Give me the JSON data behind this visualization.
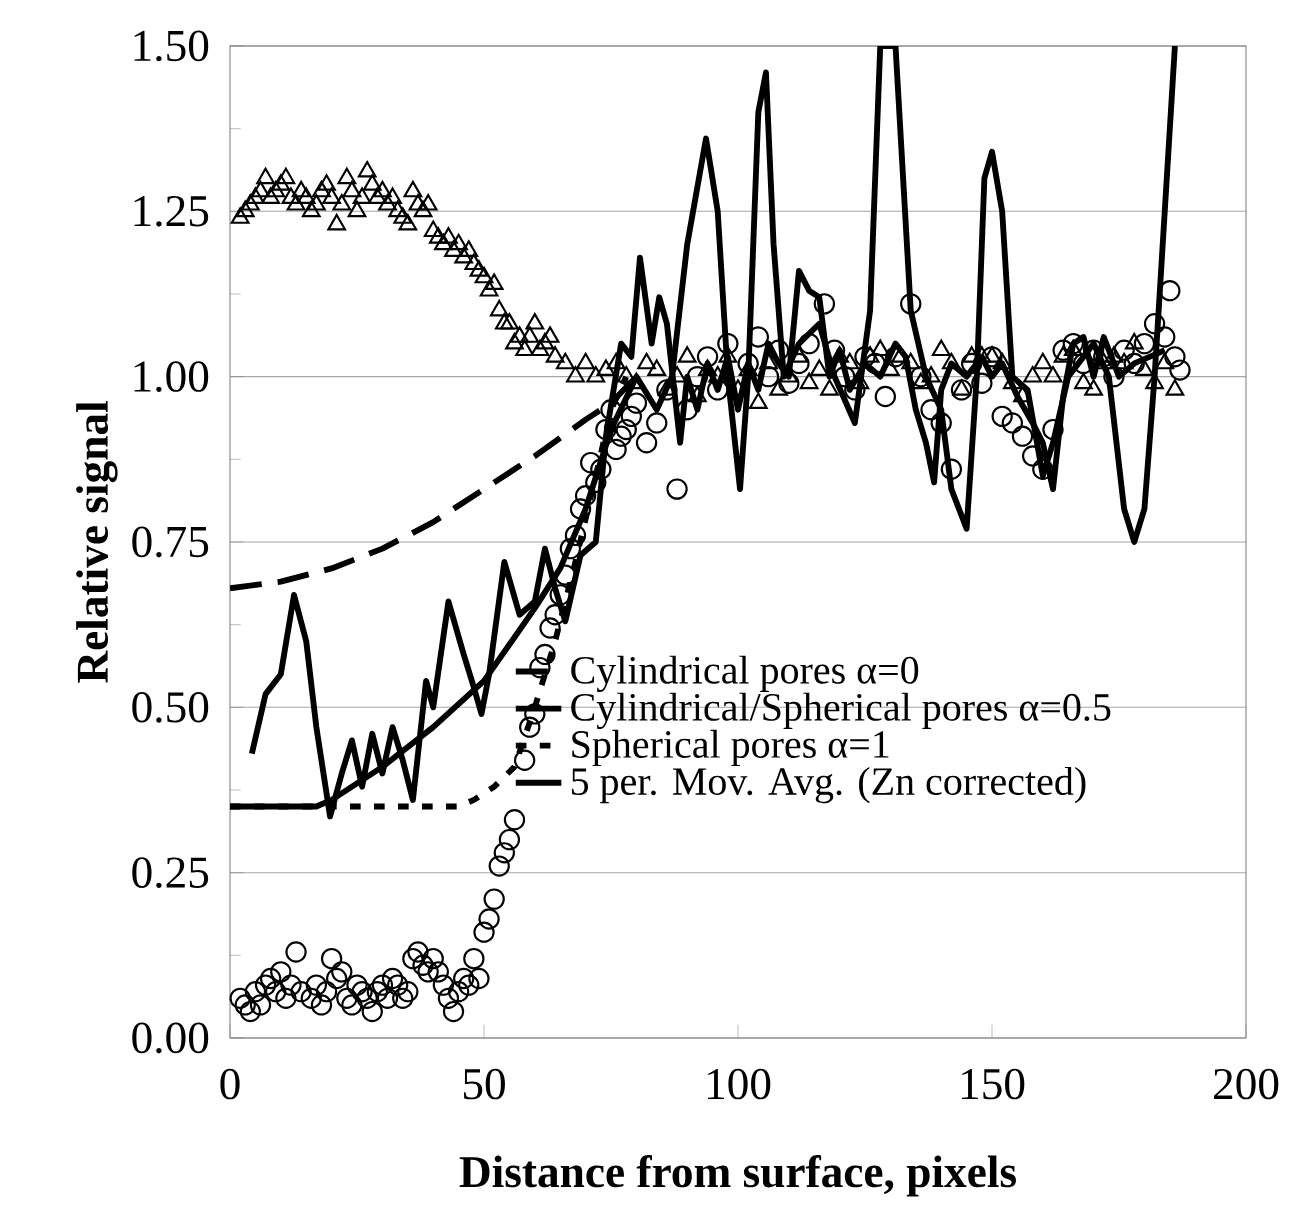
{
  "chart_data": {
    "type": "line",
    "xlabel": "Distance from surface, pixels",
    "ylabel": "Relative signal",
    "xlim": [
      0,
      200
    ],
    "ylim": [
      0,
      1.5
    ],
    "xticks": [
      0,
      50,
      100,
      150,
      200
    ],
    "yticks": [
      {
        "value": 0,
        "label": "0.00"
      },
      {
        "value": 0.25,
        "label": "0.25"
      },
      {
        "value": 0.5,
        "label": "0.50"
      },
      {
        "value": 0.75,
        "label": "0.75"
      },
      {
        "value": 1,
        "label": "1.00"
      },
      {
        "value": 1.25,
        "label": "1.25"
      },
      {
        "value": 1.5,
        "label": "1.50"
      }
    ],
    "grid": "y",
    "legend": "bottom right",
    "series": [
      {
        "type": "scatter",
        "marker": "circle",
        "color": "#000000",
        "x": [
          2,
          3,
          4,
          5,
          6,
          7,
          8,
          9,
          10,
          11,
          12,
          13,
          14,
          16,
          17,
          18,
          19,
          20,
          21,
          22,
          23,
          24,
          25,
          26,
          27,
          28,
          29,
          30,
          31,
          32,
          33,
          34,
          35,
          36,
          37,
          38,
          39,
          40,
          41,
          42,
          43,
          44,
          45,
          46,
          47,
          48,
          49,
          50,
          51,
          52,
          53,
          54,
          55,
          56,
          58,
          59,
          60,
          61,
          62,
          63,
          64,
          65,
          66,
          67,
          68,
          69,
          70,
          71,
          72,
          73,
          74,
          75,
          76,
          77,
          78,
          79,
          80,
          82,
          84,
          86,
          88,
          90,
          92,
          94,
          96,
          98,
          100,
          102,
          104,
          106,
          108,
          110,
          112,
          114,
          117,
          119,
          121,
          123,
          125,
          127,
          129,
          131,
          134,
          136,
          138,
          140,
          142,
          144,
          146,
          148,
          150,
          152,
          154,
          156,
          158,
          160,
          162,
          164,
          166,
          168,
          170,
          172,
          174,
          176,
          178,
          180,
          182,
          184,
          185,
          186,
          187
        ],
        "values": [
          0.06,
          0.05,
          0.04,
          0.07,
          0.05,
          0.08,
          0.09,
          0.07,
          0.1,
          0.06,
          0.08,
          0.13,
          0.07,
          0.06,
          0.08,
          0.05,
          0.07,
          0.12,
          0.09,
          0.1,
          0.06,
          0.05,
          0.08,
          0.07,
          0.06,
          0.04,
          0.07,
          0.08,
          0.06,
          0.09,
          0.08,
          0.06,
          0.07,
          0.12,
          0.13,
          0.11,
          0.1,
          0.12,
          0.1,
          0.08,
          0.06,
          0.04,
          0.07,
          0.09,
          0.08,
          0.12,
          0.09,
          0.16,
          0.18,
          0.21,
          0.26,
          0.28,
          0.3,
          0.33,
          0.42,
          0.47,
          0.49,
          0.56,
          0.58,
          0.62,
          0.64,
          0.67,
          0.7,
          0.74,
          0.76,
          0.8,
          0.82,
          0.87,
          0.84,
          0.86,
          0.92,
          0.95,
          0.89,
          0.91,
          0.92,
          0.94,
          0.96,
          0.9,
          0.93,
          0.98,
          0.83,
          0.95,
          1.0,
          1.03,
          0.98,
          1.05,
          null,
          1.02,
          1.06,
          1.0,
          1.04,
          0.99,
          1.02,
          1.05,
          1.11,
          1.04,
          1.0,
          0.98,
          1.03,
          1.02,
          0.97,
          1.03,
          1.11,
          1.0,
          0.95,
          0.93,
          0.86,
          0.98,
          1.02,
          0.99,
          1.03,
          0.94,
          0.93,
          0.91,
          0.88,
          0.86,
          0.92,
          1.04,
          1.05,
          1.02,
          1.04,
          1.03,
          1.0,
          1.04,
          1.02,
          1.05,
          1.08,
          1.06,
          1.13,
          1.03,
          1.01
        ]
      },
      {
        "type": "scatter",
        "marker": "triangle",
        "color": "#000000",
        "x": [
          2,
          3,
          4,
          5,
          6,
          7,
          8,
          9,
          10,
          11,
          12,
          13,
          14,
          15,
          16,
          17,
          18,
          19,
          20,
          21,
          22,
          23,
          24,
          25,
          26,
          27,
          28,
          29,
          30,
          31,
          32,
          33,
          34,
          35,
          36,
          37,
          38,
          39,
          40,
          41,
          42,
          43,
          44,
          45,
          46,
          47,
          48,
          49,
          50,
          51,
          52,
          53,
          54,
          55,
          56,
          57,
          58,
          59,
          60,
          61,
          62,
          63,
          64,
          66,
          68,
          70,
          72,
          74,
          76,
          78,
          80,
          82,
          84,
          86,
          88,
          90,
          92,
          94,
          96,
          98,
          100,
          102,
          104,
          106,
          108,
          110,
          112,
          114,
          116,
          118,
          120,
          122,
          124,
          126,
          128,
          130,
          132,
          134,
          136,
          138,
          140,
          142,
          144,
          146,
          148,
          150,
          152,
          154,
          156,
          158,
          160,
          162,
          164,
          166,
          168,
          170,
          172,
          174,
          176,
          178,
          180,
          182,
          184,
          186
        ],
        "values": [
          1.24,
          1.25,
          1.26,
          1.27,
          1.28,
          1.3,
          1.27,
          1.28,
          1.29,
          1.3,
          1.27,
          1.26,
          1.28,
          1.27,
          1.25,
          1.26,
          1.28,
          1.29,
          1.27,
          1.23,
          1.26,
          1.3,
          1.28,
          1.25,
          1.27,
          1.31,
          1.29,
          1.27,
          1.28,
          1.26,
          1.27,
          1.25,
          1.24,
          1.23,
          1.28,
          1.26,
          1.25,
          1.26,
          1.22,
          1.21,
          1.2,
          1.21,
          1.19,
          1.2,
          1.18,
          1.19,
          1.17,
          1.16,
          1.15,
          1.13,
          1.14,
          1.1,
          1.08,
          1.08,
          1.05,
          1.06,
          1.04,
          1.06,
          1.08,
          1.04,
          1.05,
          1.06,
          1.03,
          1.02,
          1.0,
          1.02,
          1.0,
          1.01,
          1.02,
          1.0,
          0.99,
          1.02,
          1.01,
          0.98,
          1.0,
          1.03,
          0.97,
          1.01,
          1.0,
          1.03,
          0.98,
          1.01,
          0.96,
          1.02,
          0.98,
          1.0,
          1.03,
          0.99,
          1.01,
          0.98,
          1.03,
          1.02,
          0.99,
          1.03,
          1.04,
          1.01,
          1.03,
          1.02,
          0.99,
          1.0,
          1.04,
          1.02,
          0.98,
          1.03,
          1.03,
          1.03,
          1.02,
          0.99,
          0.97,
          1.0,
          1.02,
          1.0,
          1.03,
          1.04,
          0.99,
          0.98,
          1.02,
          1.03,
          1.02,
          1.05,
          1.01,
          0.99,
          1.02,
          0.98
        ]
      },
      {
        "name": "Cylindrical pores α=0",
        "line_style": "dashed",
        "marker": "none",
        "color": "#000000",
        "x": [
          0,
          10,
          20,
          30,
          40,
          50,
          60,
          70,
          75,
          80
        ],
        "values": [
          0.68,
          0.69,
          0.71,
          0.74,
          0.78,
          0.83,
          0.88,
          0.935,
          0.96,
          1.0
        ]
      },
      {
        "name": "Cylindrical/Spherical pores α=0.5",
        "line_style": "solid",
        "marker": "none",
        "color": "#000000",
        "x": [
          0,
          17,
          20,
          30,
          40,
          50,
          60,
          65,
          70,
          75,
          80,
          84,
          87,
          90,
          93.7,
          96,
          98,
          100.4,
          102,
          104,
          105.5,
          107,
          109,
          112,
          116,
          119,
          123,
          126,
          128,
          131,
          134,
          137,
          140,
          142,
          145,
          147,
          148.5,
          150,
          152,
          154,
          157,
          160,
          162,
          165,
          170,
          173,
          176,
          178,
          180,
          182,
          184,
          186
        ],
        "values": [
          0.35,
          0.35,
          0.36,
          0.41,
          0.47,
          0.54,
          0.65,
          0.71,
          0.8,
          0.92,
          1.0,
          0.95,
          1.0,
          1.2,
          1.36,
          1.25,
          1.0,
          0.83,
          1.0,
          1.4,
          1.46,
          1.2,
          1.0,
          1.05,
          1.08,
          1.0,
          0.93,
          1.1,
          1.5,
          1.5,
          1.1,
          1.0,
          0.95,
          0.83,
          0.77,
          1.0,
          1.3,
          1.34,
          1.25,
          1.0,
          0.98,
          0.85,
          0.9,
          1.0,
          1.05,
          1.0,
          0.8,
          0.75,
          0.8,
          1.0,
          1.25,
          1.5
        ]
      },
      {
        "name": "Spherical pores α=1",
        "line_style": "dotted",
        "marker": "none",
        "color": "#000000",
        "x": [
          0,
          26,
          45,
          48,
          52,
          56,
          60,
          64,
          68,
          72,
          75,
          78
        ],
        "values": [
          0.35,
          0.35,
          0.35,
          0.36,
          0.38,
          0.41,
          0.5,
          0.6,
          0.72,
          0.85,
          0.95,
          1.0
        ]
      },
      {
        "name": "5 per. Mov. Avg. (Zn corrected)",
        "line_style": "solid",
        "marker": "none",
        "color": "#000000",
        "x": [
          4.3,
          7,
          10,
          12.6,
          15,
          17,
          19.7,
          22,
          24,
          26,
          28,
          30,
          32,
          34,
          36,
          38.6,
          40,
          43,
          46,
          48,
          49.5,
          51,
          54,
          57,
          60,
          62,
          64,
          66,
          69,
          72,
          74,
          77,
          79,
          80.7,
          83,
          84.5,
          86,
          88.6,
          90,
          92,
          94,
          96,
          98,
          100,
          102,
          104,
          106,
          108,
          110,
          112,
          114,
          116,
          118,
          120,
          122,
          125,
          128,
          131,
          133,
          135,
          137,
          138.6,
          140,
          142,
          145,
          148,
          150,
          152,
          155,
          158,
          160,
          162,
          164,
          166,
          168,
          170,
          172,
          175,
          178,
          181,
          184
        ],
        "values": [
          0.43,
          0.52,
          0.55,
          0.67,
          0.6,
          0.47,
          0.335,
          0.4,
          0.45,
          0.38,
          0.46,
          0.4,
          0.47,
          0.42,
          0.36,
          0.54,
          0.5,
          0.66,
          0.58,
          0.53,
          0.49,
          0.55,
          0.72,
          0.64,
          0.66,
          0.74,
          0.68,
          0.63,
          0.73,
          0.75,
          0.91,
          1.05,
          1.03,
          1.18,
          1.05,
          1.12,
          1.08,
          0.9,
          1.0,
          0.95,
          1.02,
          0.98,
          1.03,
          0.95,
          1.02,
          0.98,
          1.05,
          1.02,
          1.0,
          1.16,
          1.13,
          1.12,
          1.0,
          1.04,
          0.98,
          1.02,
          1.0,
          1.05,
          1.03,
          0.95,
          0.9,
          0.84,
          0.98,
          1.02,
          1.0,
          1.03,
          1.0,
          1.02,
          0.97,
          0.93,
          0.9,
          0.83,
          0.97,
          1.05,
          1.06,
          1.0,
          1.06,
          1.0,
          1.02,
          1.03,
          1.04
        ]
      }
    ]
  }
}
